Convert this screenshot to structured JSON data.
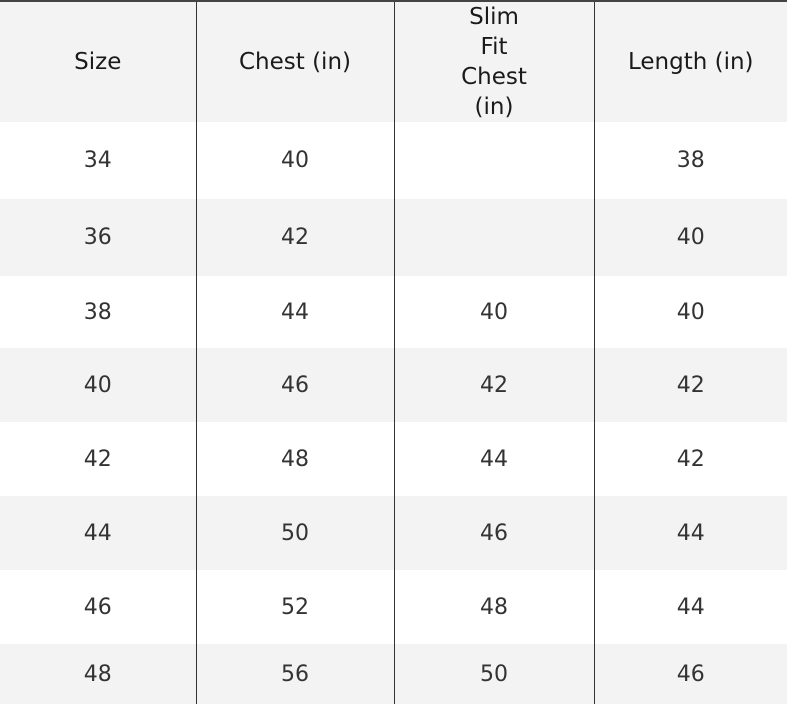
{
  "table": {
    "headers": [
      "Size",
      "Chest (in)",
      "Slim Fit Chest (in)",
      "Length (in)"
    ],
    "rows": [
      [
        "34",
        "40",
        "",
        "38"
      ],
      [
        "36",
        "42",
        "",
        "40"
      ],
      [
        "38",
        "44",
        "40",
        "40"
      ],
      [
        "40",
        "46",
        "42",
        "42"
      ],
      [
        "42",
        "48",
        "44",
        "42"
      ],
      [
        "44",
        "50",
        "46",
        "44"
      ],
      [
        "46",
        "52",
        "48",
        "44"
      ],
      [
        "48",
        "56",
        "50",
        "46"
      ]
    ],
    "stripe_color": "#f3f3f3",
    "border_color": "#333333"
  }
}
